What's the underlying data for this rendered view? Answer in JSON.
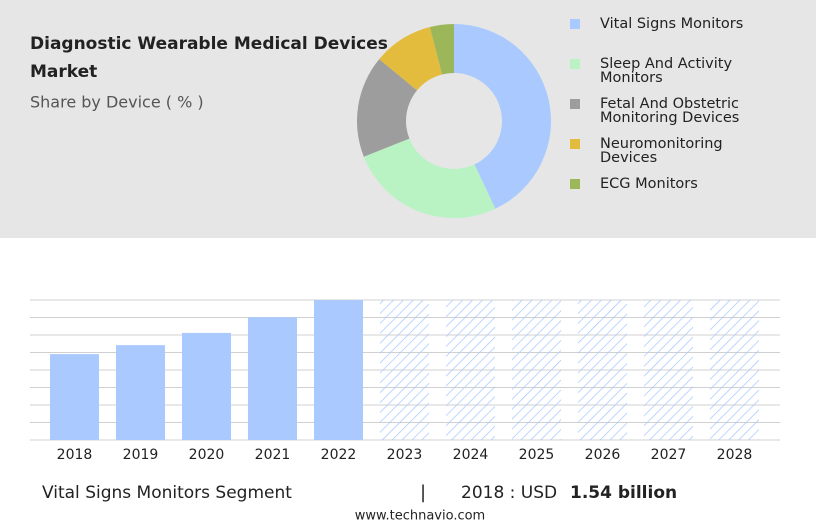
{
  "chart_data": [
    {
      "type": "donut",
      "title": "Diagnostic Wearable Medical Devices Market",
      "subtitle": "Share by Device ( % )",
      "categories": [
        "Vital Signs Monitors",
        "Sleep And Activity Monitors",
        "Fetal And Obstetric Monitoring Devices",
        "Neuromonitoring Devices",
        "ECG Monitors"
      ],
      "values": [
        43,
        26,
        17,
        10,
        4
      ],
      "colors": [
        "#a9c9ff",
        "#b9f3c3",
        "#9d9d9d",
        "#e3bb3d",
        "#9cb65a"
      ]
    },
    {
      "type": "bar",
      "categories": [
        "2018",
        "2019",
        "2020",
        "2021",
        "2022",
        "2023",
        "2024",
        "2025",
        "2026",
        "2027",
        "2028"
      ],
      "values": [
        1.54,
        1.7,
        1.92,
        2.2,
        2.51,
        null,
        null,
        null,
        null,
        null,
        null
      ],
      "color": "#a9c9ff",
      "ylim": [
        0,
        2.51
      ],
      "grid": true,
      "segment": "Vital Signs Monitors Segment",
      "separator": "|",
      "highlight_prefix": "2018 : USD",
      "highlight_value_label": "1.54 billion",
      "source": "www.technavio.com"
    }
  ]
}
